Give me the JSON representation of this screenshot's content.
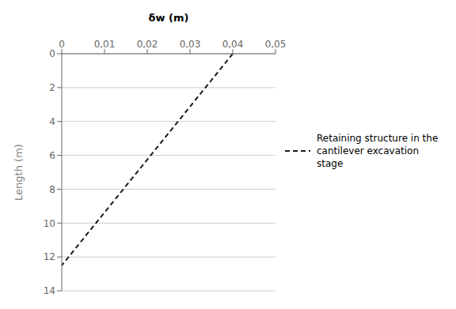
{
  "chart_data": {
    "type": "line",
    "xlabel": "δw (m)",
    "ylabel": "Length (m)",
    "x": [
      0.04,
      0.0
    ],
    "series": [
      {
        "name": "Retaining structure in the\ncantilever excavation stage",
        "color": "#1a1a1a",
        "line_style": "dashed",
        "values": [
          0.0,
          12.5
        ]
      }
    ],
    "xlim": [
      0,
      0.05
    ],
    "ylim": [
      14,
      0
    ],
    "xticks": [
      {
        "value": 0,
        "label": "0"
      },
      {
        "value": 0.01,
        "label": "0,01"
      },
      {
        "value": 0.02,
        "label": "0,02"
      },
      {
        "value": 0.03,
        "label": "0,03"
      },
      {
        "value": 0.04,
        "label": "0,04"
      },
      {
        "value": 0.05,
        "label": "0,05"
      }
    ],
    "yticks": [
      0,
      2,
      4,
      6,
      8,
      10,
      12,
      14
    ],
    "grid": "y",
    "legend": "right"
  }
}
